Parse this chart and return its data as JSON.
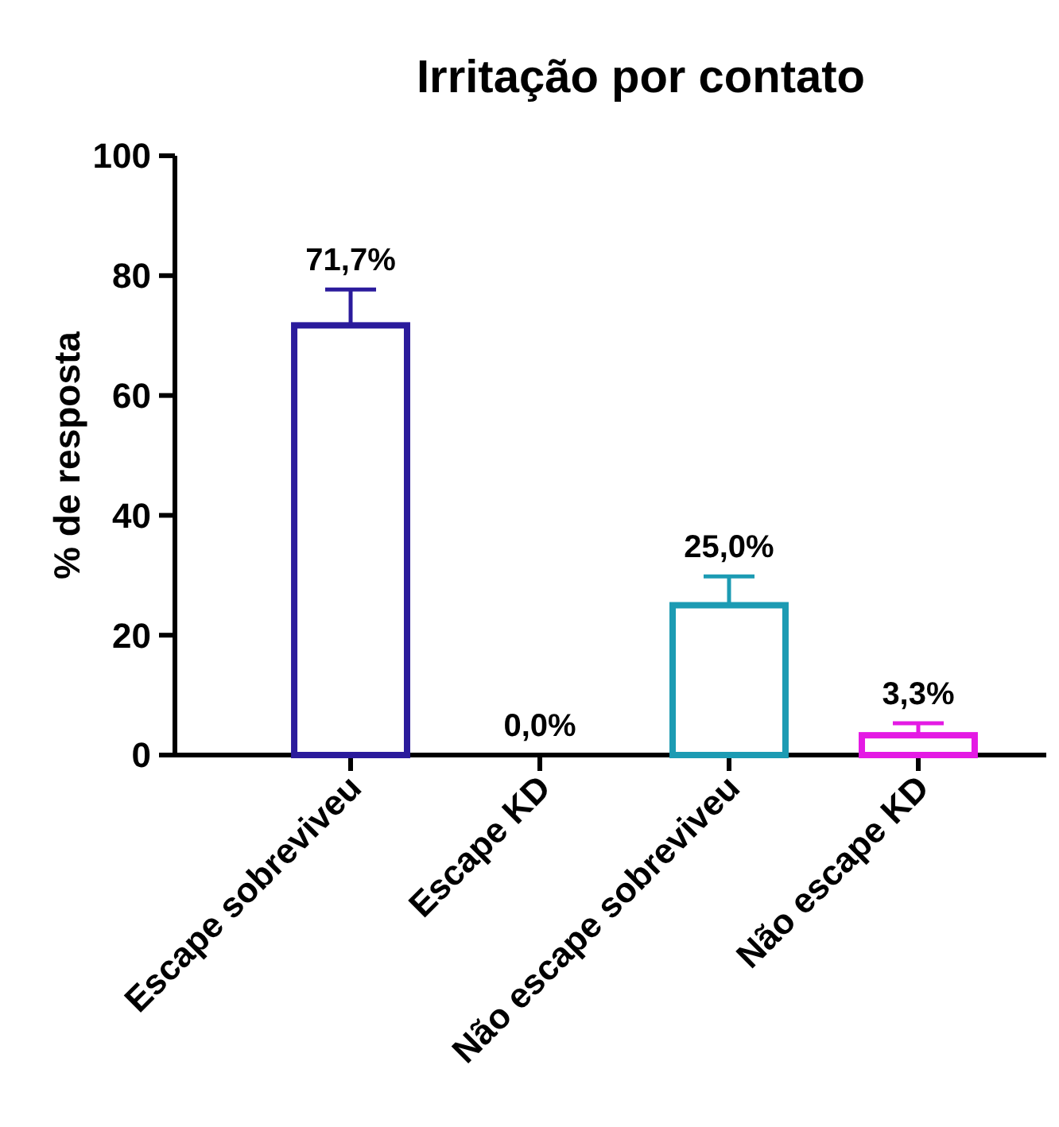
{
  "chart_data": {
    "type": "bar",
    "title": "Irritação por contato",
    "ylabel": "% de resposta",
    "categories": [
      "Escape sobreviveu",
      "Escape KD",
      "Não escape sobreviveu",
      "Não escape KD"
    ],
    "values": [
      71.7,
      0,
      25.0,
      3.3
    ],
    "colors": [
      "#2b1b9c",
      "#8b1a1a",
      "#1c9bb3",
      "#e41ae4"
    ],
    "errors": [
      [
        71.7,
        77.7
      ],
      null,
      [
        25.0,
        29.8
      ],
      [
        3.3,
        5.3
      ]
    ],
    "value_labels": [
      "71,7%",
      "0,0%",
      "25,0%",
      "3,3%"
    ],
    "ylim": [
      0,
      100
    ],
    "yticks": [
      0,
      20,
      40,
      60,
      80,
      100
    ],
    "grid": false
  }
}
